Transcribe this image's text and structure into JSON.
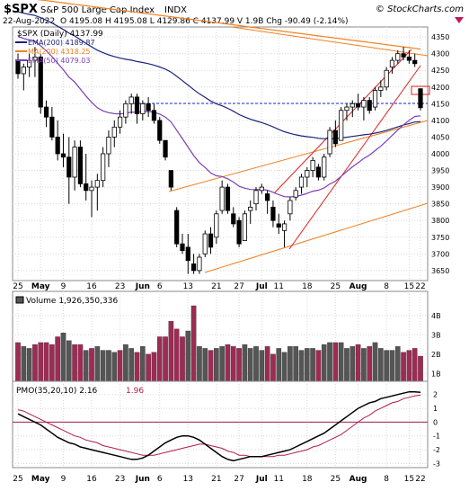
{
  "header": {
    "symbol": "$SPX",
    "name": "S&P 500 Large Cap Index",
    "exchange": "INDX",
    "date": "22-Aug-2022",
    "ohlc": "O 4195.08  H 4195.08  L 4129.86  C 4137.99  V 1.9B  Chg -90.49 (-2.14%)",
    "watermark": "© StockCharts.com"
  },
  "colors": {
    "up": "#000000",
    "down": "#000000",
    "ema200": "#1a237e",
    "ma200": "#f08020",
    "ema50": "#7a3fb5",
    "volume_up": "#555555",
    "volume_down": "#9e2b54",
    "pmo": "#000000",
    "pmo_signal": "#b01c4a",
    "channel_orange": "#f08020",
    "channel_red": "#e02020",
    "support_line": "#1a2bd0"
  },
  "chart_data": [
    {
      "type": "candlestick",
      "title": "$SPX (Daily) 4137.99",
      "series": [
        {
          "name": "EMA(200) 4189.87"
        },
        {
          "name": "MA(200) 4318.25"
        },
        {
          "name": "EMA(50) 4079.03"
        }
      ],
      "x_tick_labels": [
        "25",
        "May",
        "9",
        "16",
        "23",
        "Jun",
        "6",
        "13",
        "21",
        "27",
        "Jul",
        "11",
        "18",
        "25",
        "Aug",
        "8",
        "15",
        "22"
      ],
      "y_tick_labels": [
        "3650",
        "3700",
        "3750",
        "3800",
        "3850",
        "3900",
        "3950",
        "4000",
        "4050",
        "4100",
        "4150",
        "4200",
        "4250",
        "4300",
        "4350"
      ],
      "ylim": [
        3620,
        4380
      ],
      "ohlc": [
        [
          4280,
          4300,
          4225,
          4240
        ],
        [
          4240,
          4270,
          4190,
          4260
        ],
        [
          4260,
          4300,
          4230,
          4280
        ],
        [
          4280,
          4320,
          4230,
          4290
        ],
        [
          4290,
          4300,
          4120,
          4140
        ],
        [
          4140,
          4160,
          4080,
          4110
        ],
        [
          4110,
          4140,
          4040,
          4050
        ],
        [
          4050,
          4100,
          3980,
          4000
        ],
        [
          4000,
          4060,
          3960,
          3990
        ],
        [
          3990,
          4050,
          3850,
          3930
        ],
        [
          3930,
          4040,
          3890,
          4020
        ],
        [
          4020,
          4040,
          3900,
          3910
        ],
        [
          3910,
          4000,
          3860,
          3890
        ],
        [
          3890,
          3920,
          3810,
          3900
        ],
        [
          3900,
          3940,
          3830,
          3920
        ],
        [
          3920,
          4020,
          3900,
          4000
        ],
        [
          4000,
          4070,
          3960,
          4050
        ],
        [
          4050,
          4100,
          4020,
          4080
        ],
        [
          4080,
          4130,
          4060,
          4110
        ],
        [
          4110,
          4160,
          4090,
          4150
        ],
        [
          4150,
          4180,
          4120,
          4170
        ],
        [
          4170,
          4180,
          4090,
          4120
        ],
        [
          4120,
          4160,
          4100,
          4150
        ],
        [
          4150,
          4170,
          4110,
          4130
        ],
        [
          4130,
          4150,
          4090,
          4100
        ],
        [
          4100,
          4110,
          4030,
          4040
        ],
        [
          4040,
          4040,
          3980,
          3990
        ],
        [
          3950,
          3950,
          3890,
          3900
        ],
        [
          3830,
          3840,
          3720,
          3730
        ],
        [
          3730,
          3760,
          3700,
          3710
        ],
        [
          3720,
          3760,
          3640,
          3680
        ],
        [
          3670,
          3700,
          3640,
          3650
        ],
        [
          3650,
          3700,
          3640,
          3690
        ],
        [
          3700,
          3770,
          3690,
          3760
        ],
        [
          3760,
          3780,
          3700,
          3720
        ],
        [
          3750,
          3830,
          3730,
          3820
        ],
        [
          3830,
          3920,
          3820,
          3900
        ],
        [
          3900,
          3910,
          3820,
          3830
        ],
        [
          3820,
          3840,
          3780,
          3790
        ],
        [
          3800,
          3810,
          3720,
          3730
        ],
        [
          3740,
          3830,
          3740,
          3820
        ],
        [
          3830,
          3860,
          3790,
          3840
        ],
        [
          3850,
          3900,
          3830,
          3890
        ],
        [
          3890,
          3910,
          3880,
          3900
        ],
        [
          3880,
          3890,
          3820,
          3860
        ],
        [
          3840,
          3860,
          3780,
          3800
        ],
        [
          3790,
          3820,
          3760,
          3780
        ],
        [
          3770,
          3800,
          3720,
          3790
        ],
        [
          3820,
          3870,
          3800,
          3860
        ],
        [
          3870,
          3900,
          3860,
          3890
        ],
        [
          3900,
          3940,
          3880,
          3930
        ],
        [
          3930,
          3960,
          3900,
          3950
        ],
        [
          3950,
          3990,
          3930,
          3980
        ],
        [
          3960,
          3970,
          3920,
          3930
        ],
        [
          3930,
          4000,
          3920,
          3990
        ],
        [
          4000,
          4080,
          3990,
          4070
        ],
        [
          4070,
          4100,
          4020,
          4030
        ],
        [
          4040,
          4140,
          4040,
          4130
        ],
        [
          4130,
          4150,
          4100,
          4140
        ],
        [
          4140,
          4160,
          4110,
          4150
        ],
        [
          4150,
          4180,
          4130,
          4140
        ],
        [
          4140,
          4170,
          4100,
          4160
        ],
        [
          4160,
          4170,
          4120,
          4130
        ],
        [
          4140,
          4200,
          4130,
          4190
        ],
        [
          4190,
          4220,
          4170,
          4200
        ],
        [
          4200,
          4260,
          4190,
          4250
        ],
        [
          4260,
          4290,
          4240,
          4280
        ],
        [
          4280,
          4310,
          4270,
          4300
        ],
        [
          4300,
          4320,
          4280,
          4290
        ],
        [
          4290,
          4310,
          4270,
          4280
        ],
        [
          4280,
          4300,
          4260,
          4270
        ],
        [
          4195,
          4195,
          4130,
          4138
        ]
      ]
    },
    {
      "type": "bar",
      "title": "Volume 1,926,350,336",
      "y_tick_labels": [
        "1B",
        "2B",
        "3B",
        "4B"
      ],
      "ylim": [
        0.6,
        4.5
      ],
      "values": [
        2.6,
        2.4,
        2.3,
        2.5,
        2.6,
        2.6,
        2.5,
        2.9,
        3.1,
        2.7,
        2.5,
        2.5,
        2.2,
        2.3,
        2.4,
        2.2,
        2.2,
        2.1,
        2.2,
        2.5,
        2.3,
        2.1,
        2.4,
        2.0,
        2.1,
        2.9,
        2.9,
        3.7,
        3.3,
        2.9,
        3.2,
        4.5,
        2.4,
        2.3,
        2.2,
        2.3,
        2.4,
        2.5,
        2.4,
        2.3,
        2.5,
        2.3,
        2.4,
        2.2,
        2.4,
        2.0,
        2.3,
        2.1,
        2.4,
        2.4,
        2.2,
        2.3,
        2.3,
        2.2,
        2.5,
        2.6,
        2.6,
        2.6,
        2.3,
        2.4,
        2.5,
        2.3,
        2.4,
        2.6,
        2.3,
        2.2,
        2.2,
        2.4,
        2.1,
        2.2,
        2.3,
        1.9
      ],
      "up_flags": [
        0,
        1,
        1,
        0,
        0,
        0,
        0,
        0,
        1,
        1,
        0,
        0,
        1,
        0,
        1,
        1,
        1,
        1,
        0,
        1,
        1,
        0,
        1,
        0,
        0,
        0,
        0,
        0,
        0,
        0,
        1,
        0,
        1,
        1,
        0,
        1,
        1,
        0,
        0,
        0,
        1,
        1,
        1,
        1,
        0,
        0,
        1,
        1,
        1,
        1,
        1,
        1,
        1,
        0,
        1,
        1,
        0,
        1,
        1,
        1,
        0,
        1,
        0,
        1,
        1,
        1,
        1,
        1,
        0,
        0,
        0,
        0
      ]
    },
    {
      "type": "line",
      "title": "PMO(35,20,10)",
      "series": [
        {
          "name": "PMO(35,20,10) 2.16",
          "values": []
        },
        {
          "name": "1.96",
          "values": []
        }
      ],
      "y_tick_labels": [
        "-3",
        "-2",
        "-1",
        "0",
        "1",
        "2"
      ],
      "ylim": [
        -3.3,
        2.7
      ],
      "pmo_values": [
        0.6,
        0.4,
        0.2,
        0.0,
        -0.2,
        -0.5,
        -0.8,
        -1.1,
        -1.3,
        -1.5,
        -1.6,
        -1.8,
        -1.9,
        -2.0,
        -2.1,
        -2.2,
        -2.3,
        -2.4,
        -2.5,
        -2.6,
        -2.7,
        -2.7,
        -2.6,
        -2.4,
        -2.1,
        -1.8,
        -1.5,
        -1.3,
        -1.1,
        -1.0,
        -1.0,
        -1.1,
        -1.3,
        -1.6,
        -1.9,
        -2.2,
        -2.5,
        -2.7,
        -2.8,
        -2.7,
        -2.6,
        -2.5,
        -2.5,
        -2.5,
        -2.4,
        -2.3,
        -2.2,
        -2.1,
        -2.0,
        -1.8,
        -1.6,
        -1.4,
        -1.2,
        -1.0,
        -0.8,
        -0.5,
        -0.2,
        0.1,
        0.4,
        0.7,
        1.0,
        1.2,
        1.4,
        1.5,
        1.7,
        1.8,
        1.9,
        2.0,
        2.1,
        2.2,
        2.2,
        2.16
      ],
      "signal_values": [
        0.9,
        0.8,
        0.6,
        0.4,
        0.2,
        0.0,
        -0.2,
        -0.4,
        -0.6,
        -0.8,
        -1.0,
        -1.1,
        -1.3,
        -1.4,
        -1.5,
        -1.7,
        -1.8,
        -1.9,
        -2.0,
        -2.1,
        -2.2,
        -2.3,
        -2.4,
        -2.4,
        -2.4,
        -2.3,
        -2.2,
        -2.1,
        -2.0,
        -1.9,
        -1.8,
        -1.7,
        -1.6,
        -1.6,
        -1.7,
        -1.8,
        -1.9,
        -2.1,
        -2.2,
        -2.4,
        -2.4,
        -2.5,
        -2.5,
        -2.5,
        -2.5,
        -2.5,
        -2.4,
        -2.4,
        -2.3,
        -2.2,
        -2.1,
        -2.0,
        -1.8,
        -1.7,
        -1.5,
        -1.3,
        -1.1,
        -0.9,
        -0.6,
        -0.3,
        0.0,
        0.3,
        0.5,
        0.8,
        1.0,
        1.2,
        1.4,
        1.5,
        1.7,
        1.8,
        1.9,
        1.96
      ]
    }
  ]
}
